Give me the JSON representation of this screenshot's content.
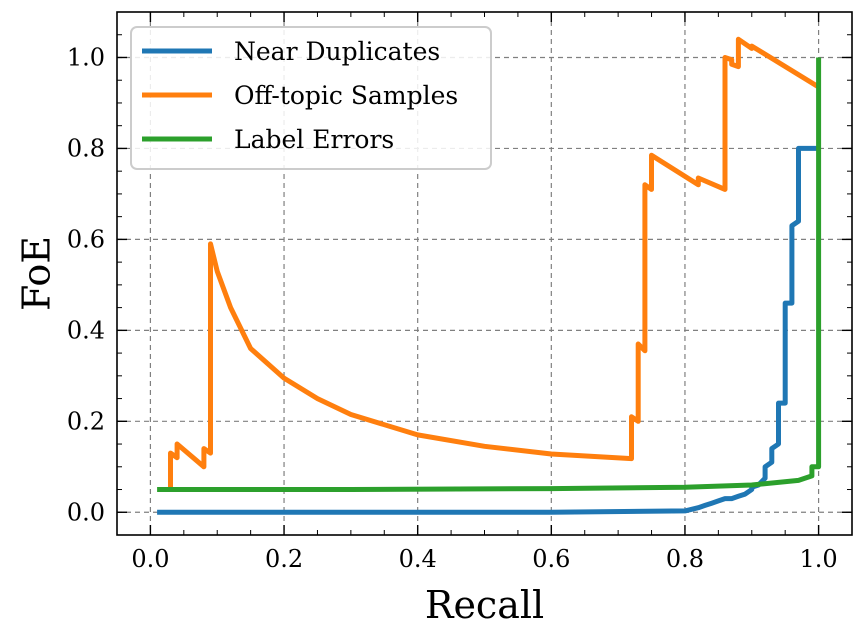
{
  "chart_data": {
    "type": "line",
    "xlabel": "Recall",
    "ylabel": "FoE",
    "xlim": [
      -0.05,
      1.05
    ],
    "ylim": [
      -0.05,
      1.1
    ],
    "xticks": [
      "0.0",
      "0.2",
      "0.4",
      "0.6",
      "0.8",
      "1.0"
    ],
    "yticks": [
      "0.0",
      "0.2",
      "0.4",
      "0.6",
      "0.8",
      "1.0"
    ],
    "grid": true,
    "legend_position": "top-left",
    "series": [
      {
        "name": "Near Duplicates",
        "color": "#1f77b4",
        "x": [
          0.01,
          0.3,
          0.6,
          0.8,
          0.82,
          0.83,
          0.84,
          0.85,
          0.86,
          0.87,
          0.88,
          0.89,
          0.9,
          0.9,
          0.91,
          0.92,
          0.92,
          0.93,
          0.93,
          0.94,
          0.94,
          0.95,
          0.95,
          0.96,
          0.96,
          0.97,
          0.97,
          0.98,
          0.98,
          0.99,
          0.99,
          1.0
        ],
        "y": [
          0.0,
          0.0,
          0.0,
          0.003,
          0.01,
          0.015,
          0.02,
          0.025,
          0.03,
          0.03,
          0.035,
          0.04,
          0.05,
          0.055,
          0.06,
          0.075,
          0.1,
          0.11,
          0.14,
          0.15,
          0.24,
          0.24,
          0.46,
          0.46,
          0.63,
          0.64,
          0.8,
          0.8,
          0.8,
          0.8,
          0.8,
          0.8
        ]
      },
      {
        "name": "Off-topic Samples",
        "color": "#ff7f0e",
        "x": [
          0.03,
          0.03,
          0.04,
          0.04,
          0.08,
          0.08,
          0.09,
          0.09,
          0.1,
          0.12,
          0.15,
          0.2,
          0.25,
          0.3,
          0.4,
          0.5,
          0.6,
          0.72,
          0.72,
          0.73,
          0.73,
          0.74,
          0.74,
          0.75,
          0.75,
          0.82,
          0.82,
          0.86,
          0.86,
          0.87,
          0.87,
          0.88,
          0.88,
          0.9,
          0.9,
          1.0
        ],
        "y": [
          0.05,
          0.13,
          0.12,
          0.15,
          0.1,
          0.14,
          0.13,
          0.59,
          0.53,
          0.45,
          0.36,
          0.295,
          0.25,
          0.215,
          0.17,
          0.145,
          0.128,
          0.118,
          0.21,
          0.2,
          0.37,
          0.355,
          0.72,
          0.71,
          0.785,
          0.72,
          0.735,
          0.71,
          1.0,
          0.995,
          0.985,
          0.98,
          1.04,
          1.02,
          1.025,
          0.935
        ]
      },
      {
        "name": "Label Errors",
        "color": "#2ca02c",
        "x": [
          0.01,
          0.3,
          0.6,
          0.8,
          0.9,
          0.97,
          0.99,
          0.99,
          1.0,
          1.0
        ],
        "y": [
          0.05,
          0.05,
          0.052,
          0.055,
          0.06,
          0.07,
          0.08,
          0.1,
          0.1,
          1.0
        ]
      }
    ]
  }
}
